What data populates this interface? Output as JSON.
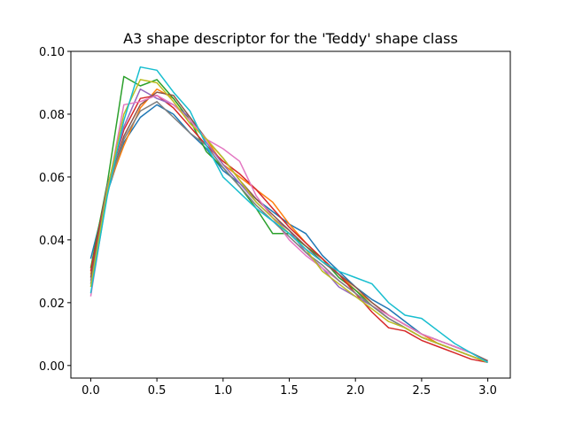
{
  "chart_data": {
    "type": "line",
    "title": "A3 shape descriptor for the 'Teddy' shape class",
    "xlabel": "",
    "ylabel": "",
    "xlim": [
      -0.15,
      3.17
    ],
    "ylim": [
      -0.004,
      0.1
    ],
    "x_ticks": [
      0.0,
      0.5,
      1.0,
      1.5,
      2.0,
      2.5,
      3.0
    ],
    "x_tick_labels": [
      "0.0",
      "0.5",
      "1.0",
      "1.5",
      "2.0",
      "2.5",
      "3.0"
    ],
    "y_ticks": [
      0.0,
      0.02,
      0.04,
      0.06,
      0.08,
      0.1
    ],
    "y_tick_labels": [
      "0.00",
      "0.02",
      "0.04",
      "0.06",
      "0.08",
      "0.10"
    ],
    "grid": false,
    "legend": "none",
    "x": [
      0.0,
      0.125,
      0.25,
      0.375,
      0.5,
      0.625,
      0.75,
      0.875,
      1.0,
      1.125,
      1.25,
      1.375,
      1.5,
      1.625,
      1.75,
      1.875,
      2.0,
      2.125,
      2.25,
      2.375,
      2.5,
      2.625,
      2.75,
      2.875,
      3.0
    ],
    "series": [
      {
        "color": "#1f77b4",
        "values": [
          0.034,
          0.055,
          0.071,
          0.079,
          0.083,
          0.08,
          0.074,
          0.069,
          0.062,
          0.058,
          0.053,
          0.049,
          0.045,
          0.042,
          0.035,
          0.03,
          0.025,
          0.021,
          0.018,
          0.014,
          0.01,
          0.008,
          0.006,
          0.004,
          0.0015
        ]
      },
      {
        "color": "#ff7f0e",
        "values": [
          0.029,
          0.056,
          0.07,
          0.082,
          0.088,
          0.085,
          0.078,
          0.072,
          0.064,
          0.06,
          0.056,
          0.052,
          0.045,
          0.039,
          0.034,
          0.029,
          0.024,
          0.02,
          0.016,
          0.013,
          0.01,
          0.007,
          0.005,
          0.003,
          0.001
        ]
      },
      {
        "color": "#2ca02c",
        "values": [
          0.031,
          0.058,
          0.092,
          0.089,
          0.091,
          0.085,
          0.078,
          0.068,
          0.063,
          0.057,
          0.05,
          0.042,
          0.042,
          0.038,
          0.034,
          0.028,
          0.024,
          0.019,
          0.015,
          0.012,
          0.009,
          0.007,
          0.005,
          0.003,
          0.001
        ]
      },
      {
        "color": "#d62728",
        "values": [
          0.03,
          0.057,
          0.075,
          0.085,
          0.086,
          0.082,
          0.076,
          0.07,
          0.065,
          0.061,
          0.056,
          0.05,
          0.044,
          0.039,
          0.034,
          0.029,
          0.023,
          0.017,
          0.012,
          0.011,
          0.008,
          0.006,
          0.004,
          0.002,
          0.001
        ]
      },
      {
        "color": "#9467bd",
        "values": [
          0.027,
          0.057,
          0.076,
          0.088,
          0.085,
          0.083,
          0.079,
          0.071,
          0.064,
          0.058,
          0.052,
          0.047,
          0.043,
          0.036,
          0.031,
          0.025,
          0.022,
          0.019,
          0.015,
          0.012,
          0.009,
          0.007,
          0.005,
          0.003,
          0.001
        ]
      },
      {
        "color": "#8c564b",
        "values": [
          0.028,
          0.056,
          0.073,
          0.083,
          0.087,
          0.086,
          0.079,
          0.072,
          0.066,
          0.059,
          0.053,
          0.048,
          0.043,
          0.038,
          0.033,
          0.029,
          0.025,
          0.02,
          0.016,
          0.013,
          0.01,
          0.008,
          0.006,
          0.004,
          0.0015
        ]
      },
      {
        "color": "#e377c2",
        "values": [
          0.022,
          0.055,
          0.083,
          0.084,
          0.086,
          0.083,
          0.078,
          0.072,
          0.069,
          0.065,
          0.054,
          0.047,
          0.04,
          0.035,
          0.031,
          0.027,
          0.023,
          0.019,
          0.016,
          0.013,
          0.01,
          0.008,
          0.006,
          0.004,
          0.001
        ]
      },
      {
        "color": "#7f7f7f",
        "values": [
          0.026,
          0.056,
          0.072,
          0.081,
          0.084,
          0.079,
          0.074,
          0.07,
          0.063,
          0.057,
          0.051,
          0.046,
          0.041,
          0.036,
          0.032,
          0.027,
          0.023,
          0.019,
          0.015,
          0.012,
          0.009,
          0.007,
          0.005,
          0.003,
          0.001
        ]
      },
      {
        "color": "#bcbd22",
        "values": [
          0.025,
          0.056,
          0.08,
          0.091,
          0.09,
          0.084,
          0.077,
          0.072,
          0.066,
          0.059,
          0.052,
          0.047,
          0.042,
          0.037,
          0.03,
          0.026,
          0.022,
          0.018,
          0.014,
          0.012,
          0.009,
          0.007,
          0.005,
          0.003,
          0.001
        ]
      },
      {
        "color": "#17becf",
        "values": [
          0.023,
          0.054,
          0.078,
          0.095,
          0.094,
          0.087,
          0.081,
          0.07,
          0.06,
          0.055,
          0.05,
          0.046,
          0.042,
          0.037,
          0.033,
          0.03,
          0.028,
          0.026,
          0.02,
          0.016,
          0.015,
          0.011,
          0.007,
          0.004,
          0.001
        ]
      }
    ]
  }
}
